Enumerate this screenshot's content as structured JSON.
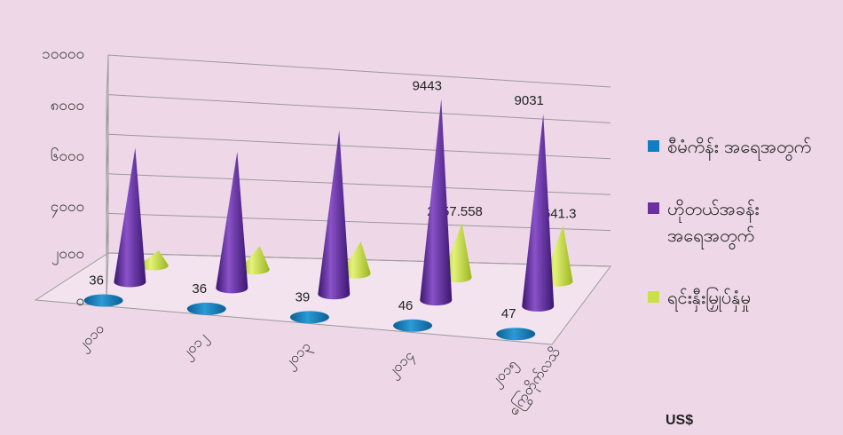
{
  "chart_data": {
    "type": "bar",
    "y_ticks": [
      "၁၀၀၀၀",
      "၈၀၀၀",
      "၆၀၀၀",
      "၄၀၀၀",
      "၂၀၀၀",
      "၀"
    ],
    "ylim": [
      0,
      10000
    ],
    "categories": [
      "၂၀၁၀",
      "၂၀၁၂",
      "၂၀၁၃",
      "၂၀၁၄",
      "၂၀၁၅"
    ],
    "depth_label": "ကြွေတိုက်လသိ",
    "series": [
      {
        "name": "စီမံကိန်း အရေအတွက်",
        "color": "#0e7fc0",
        "values": [
          36,
          36,
          39,
          46,
          47
        ],
        "data_labels": [
          "36",
          "36",
          "39",
          "46",
          "47"
        ]
      },
      {
        "name": "ဟိုတယ်အခန်း အရေအတွက်",
        "color": "#6a2fa0",
        "values": [
          6300,
          6400,
          7700,
          9443,
          9031
        ],
        "data_labels": [
          "",
          "",
          "",
          "9443",
          "9031"
        ]
      },
      {
        "name": "ရင်းနှီးမြှုပ်နှံမှု",
        "color": "#c9e046",
        "values": [
          700,
          1100,
          1500,
          2557.558,
          2641.3
        ],
        "data_labels": [
          "",
          "",
          "",
          "2557.558",
          "2641.3"
        ]
      }
    ],
    "unit_label": "US$",
    "grid": true,
    "legend_position": "right"
  }
}
